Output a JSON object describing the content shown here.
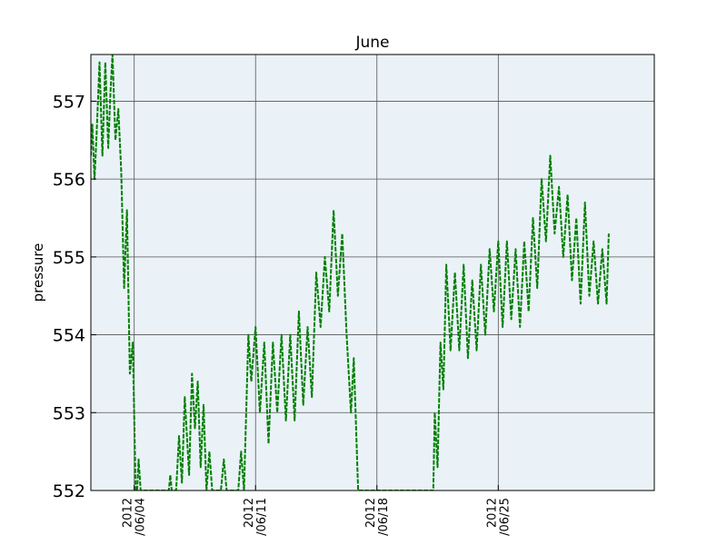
{
  "chart_data": {
    "type": "line",
    "title": "June",
    "xlabel": "",
    "ylabel": "pressure",
    "xlim": [
      "2012-06-01T12:00",
      "2012-07-04T00:00"
    ],
    "ylim": [
      552,
      557.6
    ],
    "yticks": [
      552,
      553,
      554,
      555,
      556,
      557
    ],
    "xticks": [
      {
        "date": "2012-06-04",
        "label_line1": "2012",
        "label_line2": "/06/04"
      },
      {
        "date": "2012-06-11",
        "label_line1": "2012",
        "label_line2": "/06/11"
      },
      {
        "date": "2012-06-18",
        "label_line1": "2012",
        "label_line2": "/06/18"
      },
      {
        "date": "2012-06-25",
        "label_line1": "2012",
        "label_line2": "/06/25"
      }
    ],
    "grid": true,
    "background_color": "#eaf2f8",
    "series": [
      {
        "color": "#007f00",
        "points": [
          [
            "2012-06-01T12:00",
            556.3
          ],
          [
            "2012-06-01T14:00",
            556.7
          ],
          [
            "2012-06-01T17:00",
            556.0
          ],
          [
            "2012-06-01T20:00",
            556.6
          ],
          [
            "2012-06-02T00:00",
            557.5
          ],
          [
            "2012-06-02T04:00",
            556.3
          ],
          [
            "2012-06-02T08:00",
            557.5
          ],
          [
            "2012-06-02T12:00",
            556.4
          ],
          [
            "2012-06-02T15:00",
            557.1
          ],
          [
            "2012-06-02T18:00",
            557.6
          ],
          [
            "2012-06-02T22:00",
            556.5
          ],
          [
            "2012-06-03T02:00",
            556.9
          ],
          [
            "2012-06-03T06:00",
            556.1
          ],
          [
            "2012-06-03T10:00",
            554.6
          ],
          [
            "2012-06-03T14:00",
            555.6
          ],
          [
            "2012-06-03T18:00",
            553.5
          ],
          [
            "2012-06-03T22:00",
            553.9
          ],
          [
            "2012-06-04T02:00",
            552.0
          ],
          [
            "2012-06-04T04:00",
            552.0
          ],
          [
            "2012-06-04T06:00",
            552.4
          ],
          [
            "2012-06-04T09:00",
            552.0
          ],
          [
            "2012-06-06T00:00",
            552.0
          ],
          [
            "2012-06-06T02:00",
            552.2
          ],
          [
            "2012-06-06T04:00",
            552.0
          ],
          [
            "2012-06-06T10:00",
            552.0
          ],
          [
            "2012-06-06T14:00",
            552.7
          ],
          [
            "2012-06-06T18:00",
            552.1
          ],
          [
            "2012-06-06T22:00",
            553.2
          ],
          [
            "2012-06-07T04:00",
            552.2
          ],
          [
            "2012-06-07T08:00",
            553.5
          ],
          [
            "2012-06-07T12:00",
            552.8
          ],
          [
            "2012-06-07T16:00",
            553.4
          ],
          [
            "2012-06-07T20:00",
            552.3
          ],
          [
            "2012-06-08T00:00",
            553.1
          ],
          [
            "2012-06-08T04:00",
            552.0
          ],
          [
            "2012-06-08T08:00",
            552.5
          ],
          [
            "2012-06-08T12:00",
            552.0
          ],
          [
            "2012-06-09T00:00",
            552.0
          ],
          [
            "2012-06-09T04:00",
            552.4
          ],
          [
            "2012-06-09T08:00",
            552.0
          ],
          [
            "2012-06-10T00:00",
            552.0
          ],
          [
            "2012-06-10T04:00",
            552.5
          ],
          [
            "2012-06-10T08:00",
            552.0
          ],
          [
            "2012-06-10T14:00",
            554.0
          ],
          [
            "2012-06-10T18:00",
            553.4
          ],
          [
            "2012-06-11T00:00",
            554.1
          ],
          [
            "2012-06-11T06:00",
            553.0
          ],
          [
            "2012-06-11T12:00",
            553.9
          ],
          [
            "2012-06-11T18:00",
            552.6
          ],
          [
            "2012-06-12T00:00",
            553.9
          ],
          [
            "2012-06-12T06:00",
            553.0
          ],
          [
            "2012-06-12T12:00",
            554.0
          ],
          [
            "2012-06-12T18:00",
            552.9
          ],
          [
            "2012-06-13T00:00",
            554.0
          ],
          [
            "2012-06-13T06:00",
            552.9
          ],
          [
            "2012-06-13T12:00",
            554.3
          ],
          [
            "2012-06-13T18:00",
            553.1
          ],
          [
            "2012-06-14T00:00",
            554.1
          ],
          [
            "2012-06-14T06:00",
            553.2
          ],
          [
            "2012-06-14T12:00",
            554.8
          ],
          [
            "2012-06-14T18:00",
            554.1
          ],
          [
            "2012-06-15T00:00",
            555.0
          ],
          [
            "2012-06-15T06:00",
            554.3
          ],
          [
            "2012-06-15T12:00",
            555.6
          ],
          [
            "2012-06-15T18:00",
            554.5
          ],
          [
            "2012-06-16T00:00",
            555.3
          ],
          [
            "2012-06-16T06:00",
            554.0
          ],
          [
            "2012-06-16T12:00",
            553.0
          ],
          [
            "2012-06-16T16:00",
            553.7
          ],
          [
            "2012-06-16T22:00",
            552.0
          ],
          [
            "2012-06-21T06:00",
            552.0
          ],
          [
            "2012-06-21T08:00",
            553.0
          ],
          [
            "2012-06-21T12:00",
            552.3
          ],
          [
            "2012-06-21T16:00",
            553.9
          ],
          [
            "2012-06-21T20:00",
            553.3
          ],
          [
            "2012-06-22T00:00",
            554.9
          ],
          [
            "2012-06-22T06:00",
            553.8
          ],
          [
            "2012-06-22T12:00",
            554.8
          ],
          [
            "2012-06-22T18:00",
            553.8
          ],
          [
            "2012-06-23T00:00",
            554.9
          ],
          [
            "2012-06-23T06:00",
            553.7
          ],
          [
            "2012-06-23T12:00",
            554.7
          ],
          [
            "2012-06-23T18:00",
            553.8
          ],
          [
            "2012-06-24T00:00",
            554.9
          ],
          [
            "2012-06-24T06:00",
            554.0
          ],
          [
            "2012-06-24T12:00",
            555.1
          ],
          [
            "2012-06-24T18:00",
            554.3
          ],
          [
            "2012-06-25T00:00",
            555.2
          ],
          [
            "2012-06-25T06:00",
            554.1
          ],
          [
            "2012-06-25T12:00",
            555.2
          ],
          [
            "2012-06-25T18:00",
            554.2
          ],
          [
            "2012-06-26T00:00",
            555.1
          ],
          [
            "2012-06-26T06:00",
            554.1
          ],
          [
            "2012-06-26T12:00",
            555.2
          ],
          [
            "2012-06-26T18:00",
            554.3
          ],
          [
            "2012-06-27T00:00",
            555.5
          ],
          [
            "2012-06-27T06:00",
            554.6
          ],
          [
            "2012-06-27T12:00",
            556.0
          ],
          [
            "2012-06-27T18:00",
            555.2
          ],
          [
            "2012-06-28T00:00",
            556.3
          ],
          [
            "2012-06-28T06:00",
            555.3
          ],
          [
            "2012-06-28T12:00",
            555.9
          ],
          [
            "2012-06-28T18:00",
            555.0
          ],
          [
            "2012-06-29T00:00",
            555.8
          ],
          [
            "2012-06-29T06:00",
            554.7
          ],
          [
            "2012-06-29T12:00",
            555.5
          ],
          [
            "2012-06-29T18:00",
            554.4
          ],
          [
            "2012-06-30T00:00",
            555.7
          ],
          [
            "2012-06-30T06:00",
            554.5
          ],
          [
            "2012-06-30T12:00",
            555.2
          ],
          [
            "2012-06-30T18:00",
            554.4
          ],
          [
            "2012-07-01T00:00",
            555.1
          ],
          [
            "2012-07-01T06:00",
            554.4
          ],
          [
            "2012-07-01T09:00",
            555.3
          ]
        ]
      }
    ]
  }
}
